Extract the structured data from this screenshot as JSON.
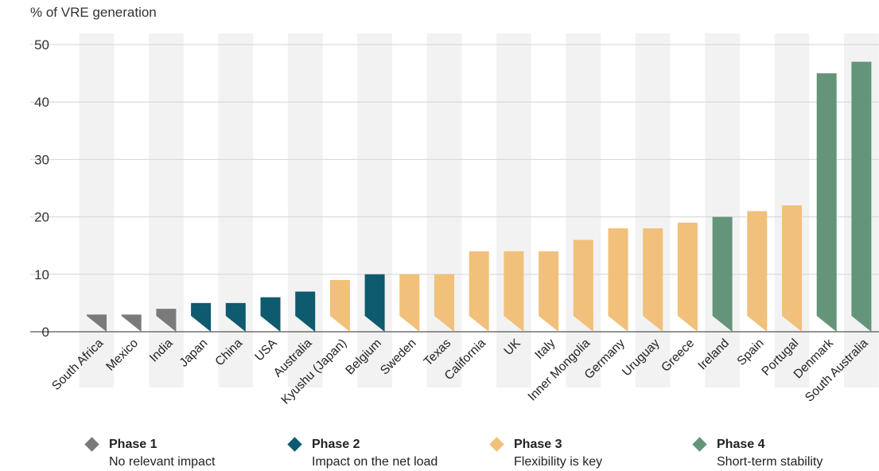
{
  "chart_data": {
    "type": "bar",
    "ylabel": "% of VRE generation",
    "ylim": [
      0,
      50
    ],
    "yticks": [
      0,
      10,
      20,
      30,
      40,
      50
    ],
    "grid": true,
    "legend_position": "bottom",
    "categories": [
      "South Africa",
      "Mexico",
      "India",
      "Japan",
      "China",
      "USA",
      "Australia",
      "Kyushu (Japan)",
      "Belgium",
      "Sweden",
      "Texas",
      "California",
      "UK",
      "Italy",
      "Inner Mongolia",
      "Germany",
      "Uruguay",
      "Greece",
      "Ireland",
      "Spain",
      "Portugal",
      "Denmark",
      "South Australia"
    ],
    "values": [
      3,
      3,
      4,
      5,
      5,
      6,
      7,
      9,
      10,
      10,
      10,
      14,
      14,
      14,
      16,
      18,
      18,
      19,
      20,
      21,
      22,
      45,
      47
    ],
    "phase": [
      1,
      1,
      1,
      2,
      2,
      2,
      2,
      3,
      2,
      3,
      3,
      3,
      3,
      3,
      3,
      3,
      3,
      3,
      4,
      3,
      3,
      4,
      4
    ],
    "phases": [
      {
        "id": 1,
        "name": "Phase 1",
        "description": "No relevant impact",
        "color": "#7a7a7a"
      },
      {
        "id": 2,
        "name": "Phase 2",
        "description": "Impact on the net load",
        "color": "#0e5a6e"
      },
      {
        "id": 3,
        "name": "Phase 3",
        "description": "Flexibility is key",
        "color": "#f1c07a"
      },
      {
        "id": 4,
        "name": "Phase 4",
        "description": "Short-term stability",
        "color": "#64957a"
      }
    ]
  }
}
